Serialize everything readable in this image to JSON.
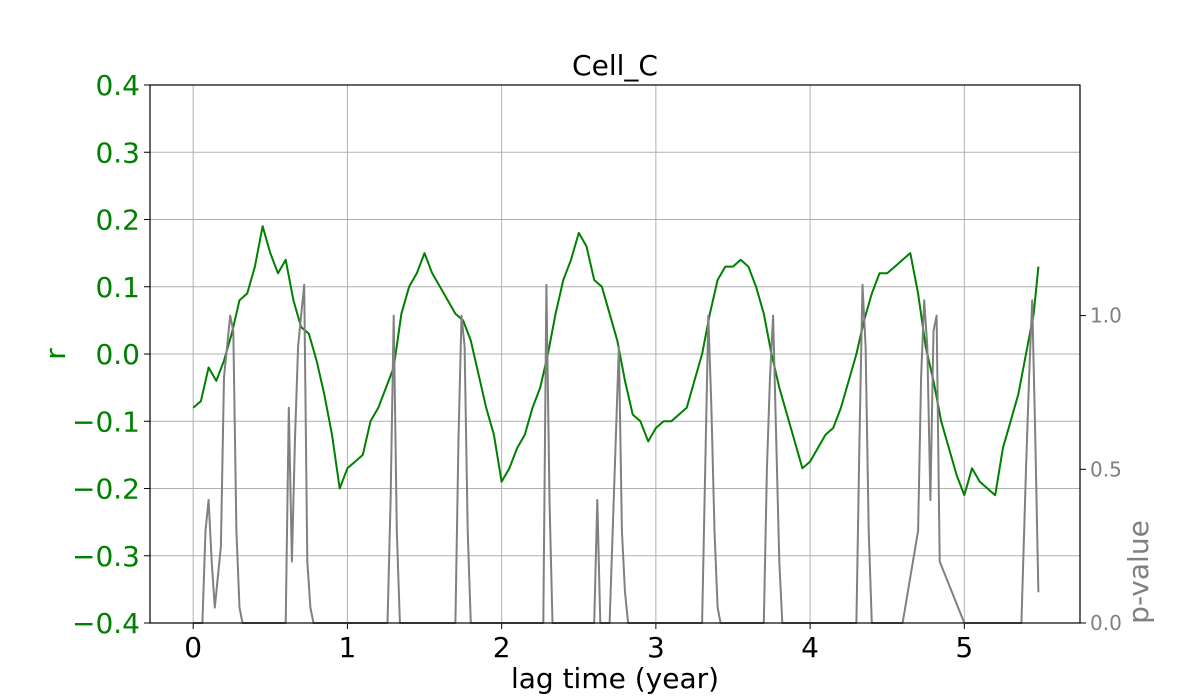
{
  "chart_data": {
    "type": "line",
    "title": "Cell_C",
    "xlabel": "lag time (year)",
    "ylabel": "r",
    "y2label": "p-value",
    "xlim": [
      -0.28,
      5.75
    ],
    "ylim": [
      -0.4,
      0.4
    ],
    "y2lim": [
      0.0,
      1.75
    ],
    "grid": true,
    "xticks": [
      0,
      1,
      2,
      3,
      4,
      5
    ],
    "xtick_labels": [
      "0",
      "1",
      "2",
      "3",
      "4",
      "5"
    ],
    "yticks": [
      0.4,
      0.3,
      0.2,
      0.1,
      0.0,
      -0.1,
      -0.2,
      -0.3,
      -0.4
    ],
    "ytick_labels": [
      "0.4",
      "0.3",
      "0.2",
      "0.1",
      "0.0",
      "−0.1",
      "−0.2",
      "−0.3",
      "−0.4"
    ],
    "y2ticks": [
      0.0,
      0.5,
      1.0
    ],
    "y2tick_labels": [
      "0.0",
      "0.5",
      "1.0"
    ],
    "colors": {
      "r": "#008000",
      "p": "#808080",
      "grid": "#b0b0b0",
      "axis": "#000000"
    },
    "series": [
      {
        "name": "r",
        "axis": "left",
        "x": [
          0.0,
          0.05,
          0.1,
          0.15,
          0.2,
          0.25,
          0.3,
          0.35,
          0.4,
          0.45,
          0.5,
          0.55,
          0.6,
          0.65,
          0.7,
          0.75,
          0.8,
          0.85,
          0.9,
          0.95,
          1.0,
          1.05,
          1.1,
          1.15,
          1.2,
          1.25,
          1.3,
          1.35,
          1.4,
          1.45,
          1.5,
          1.55,
          1.6,
          1.65,
          1.7,
          1.75,
          1.8,
          1.85,
          1.9,
          1.95,
          2.0,
          2.05,
          2.1,
          2.15,
          2.2,
          2.25,
          2.3,
          2.35,
          2.4,
          2.45,
          2.5,
          2.55,
          2.6,
          2.65,
          2.7,
          2.75,
          2.8,
          2.85,
          2.9,
          2.95,
          3.0,
          3.05,
          3.1,
          3.15,
          3.2,
          3.25,
          3.3,
          3.35,
          3.4,
          3.45,
          3.5,
          3.55,
          3.6,
          3.65,
          3.7,
          3.75,
          3.8,
          3.85,
          3.9,
          3.95,
          4.0,
          4.05,
          4.1,
          4.15,
          4.2,
          4.25,
          4.3,
          4.35,
          4.4,
          4.45,
          4.5,
          4.55,
          4.6,
          4.65,
          4.7,
          4.75,
          4.8,
          4.85,
          4.9,
          4.95,
          5.0,
          5.05,
          5.1,
          5.15,
          5.2,
          5.25,
          5.3,
          5.35,
          5.4,
          5.45,
          5.48
        ],
        "values": [
          -0.08,
          -0.07,
          -0.02,
          -0.04,
          -0.01,
          0.03,
          0.08,
          0.09,
          0.13,
          0.19,
          0.15,
          0.12,
          0.14,
          0.08,
          0.04,
          0.03,
          -0.01,
          -0.06,
          -0.12,
          -0.2,
          -0.17,
          -0.16,
          -0.15,
          -0.1,
          -0.08,
          -0.05,
          -0.02,
          0.06,
          0.1,
          0.12,
          0.15,
          0.12,
          0.1,
          0.08,
          0.06,
          0.05,
          0.02,
          -0.03,
          -0.08,
          -0.12,
          -0.19,
          -0.17,
          -0.14,
          -0.12,
          -0.08,
          -0.05,
          0.0,
          0.06,
          0.11,
          0.14,
          0.18,
          0.16,
          0.11,
          0.1,
          0.06,
          0.02,
          -0.04,
          -0.09,
          -0.1,
          -0.13,
          -0.11,
          -0.1,
          -0.1,
          -0.09,
          -0.08,
          -0.04,
          0.0,
          0.06,
          0.11,
          0.13,
          0.13,
          0.14,
          0.13,
          0.1,
          0.06,
          0.0,
          -0.05,
          -0.09,
          -0.13,
          -0.17,
          -0.16,
          -0.14,
          -0.12,
          -0.11,
          -0.08,
          -0.04,
          0.0,
          0.05,
          0.09,
          0.12,
          0.12,
          0.13,
          0.14,
          0.15,
          0.09,
          0.01,
          -0.04,
          -0.1,
          -0.14,
          -0.18,
          -0.21,
          -0.17,
          -0.19,
          -0.2,
          -0.21,
          -0.14,
          -0.1,
          -0.06,
          0.0,
          0.06,
          0.13
        ]
      },
      {
        "name": "p-value",
        "axis": "right",
        "x": [
          0.0,
          0.06,
          0.08,
          0.1,
          0.12,
          0.14,
          0.18,
          0.2,
          0.22,
          0.24,
          0.26,
          0.28,
          0.3,
          0.32,
          0.6,
          0.62,
          0.64,
          0.66,
          0.68,
          0.7,
          0.72,
          0.74,
          0.76,
          0.78,
          0.8,
          1.26,
          1.28,
          1.3,
          1.32,
          1.34,
          1.7,
          1.72,
          1.74,
          1.76,
          1.78,
          1.8,
          2.27,
          2.29,
          2.31,
          2.33,
          2.6,
          2.62,
          2.64,
          2.66,
          2.7,
          2.74,
          2.76,
          2.78,
          2.8,
          2.82,
          3.3,
          3.32,
          3.34,
          3.36,
          3.38,
          3.4,
          3.42,
          3.7,
          3.72,
          3.74,
          3.76,
          3.78,
          3.8,
          3.82,
          4.3,
          4.32,
          4.34,
          4.36,
          4.38,
          4.4,
          4.6,
          4.7,
          4.72,
          4.74,
          4.76,
          4.78,
          4.8,
          4.82,
          4.84,
          5.0,
          5.37,
          5.4,
          5.42,
          5.44,
          5.46,
          5.48
        ],
        "values": [
          0.0,
          0.0,
          0.3,
          0.4,
          0.2,
          0.05,
          0.25,
          0.8,
          0.9,
          1.0,
          0.95,
          0.3,
          0.05,
          0.0,
          0.0,
          0.7,
          0.2,
          0.6,
          0.9,
          1.0,
          1.1,
          0.2,
          0.05,
          0.0,
          0.0,
          0.0,
          0.4,
          1.0,
          0.3,
          0.0,
          0.0,
          0.6,
          1.0,
          0.9,
          0.3,
          0.0,
          0.0,
          1.1,
          0.4,
          0.0,
          0.0,
          0.4,
          0.0,
          0.0,
          0.0,
          0.6,
          0.9,
          0.3,
          0.1,
          0.0,
          0.0,
          0.5,
          1.0,
          0.7,
          0.3,
          0.05,
          0.0,
          0.0,
          0.5,
          0.8,
          1.0,
          0.6,
          0.2,
          0.0,
          0.0,
          0.6,
          1.1,
          0.9,
          0.3,
          0.0,
          0.0,
          0.3,
          0.8,
          1.05,
          0.9,
          0.4,
          0.95,
          1.0,
          0.2,
          0.0,
          0.0,
          0.5,
          0.8,
          1.05,
          0.6,
          0.1
        ]
      }
    ]
  }
}
